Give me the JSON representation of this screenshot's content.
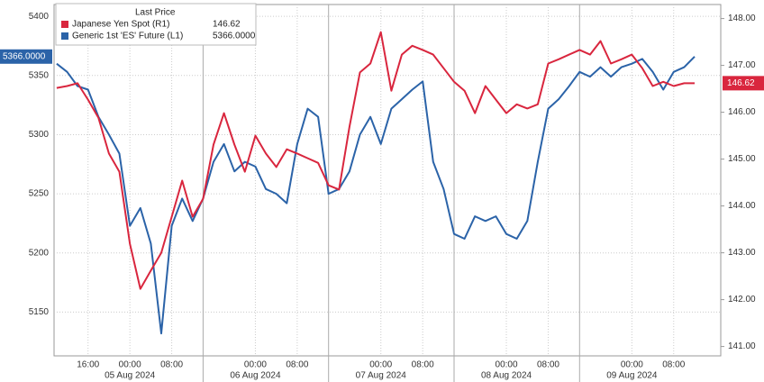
{
  "chart_data": {
    "type": "line",
    "legend_title": "Last Price",
    "x": [
      -14,
      -12,
      -10,
      -8,
      -6,
      -4,
      -2,
      0,
      2,
      4,
      6,
      8,
      10,
      12,
      14,
      16,
      18,
      20,
      22,
      24,
      26,
      28,
      30,
      32,
      34,
      36,
      38,
      40,
      42,
      44,
      46,
      48,
      50,
      52,
      54,
      56,
      58,
      60,
      62,
      64,
      66,
      68,
      70,
      72,
      74,
      76,
      78,
      80,
      82,
      84,
      86,
      88,
      90,
      92,
      94,
      96,
      98,
      100,
      102,
      104,
      106,
      108
    ],
    "xlim": [
      -14.5,
      113
    ],
    "xticks": [
      {
        "value": -8,
        "label": "16:00"
      },
      {
        "value": 0,
        "label": "00:00"
      },
      {
        "value": 8,
        "label": "08:00"
      },
      {
        "value": 24,
        "label": "00:00"
      },
      {
        "value": 32,
        "label": "08:00"
      },
      {
        "value": 48,
        "label": "00:00"
      },
      {
        "value": 56,
        "label": "08:00"
      },
      {
        "value": 72,
        "label": "00:00"
      },
      {
        "value": 80,
        "label": "08:00"
      },
      {
        "value": 96,
        "label": "00:00"
      },
      {
        "value": 104,
        "label": "08:00"
      }
    ],
    "date_labels": [
      {
        "value": 0,
        "label": "05 Aug 2024"
      },
      {
        "value": 24,
        "label": "06 Aug 2024"
      },
      {
        "value": 48,
        "label": "07 Aug 2024"
      },
      {
        "value": 72,
        "label": "08 Aug 2024"
      },
      {
        "value": 96,
        "label": "09 Aug 2024"
      }
    ],
    "separators": [
      14,
      38,
      62,
      86
    ],
    "ylim": [
      5113,
      5410
    ],
    "yticks": [
      5150,
      5200,
      5250,
      5300,
      5350,
      5400
    ],
    "y2lim": [
      140.8,
      148.3
    ],
    "y2ticks": [
      {
        "value": 141,
        "label": "141.00"
      },
      {
        "value": 142,
        "label": "142.00"
      },
      {
        "value": 143,
        "label": "143.00"
      },
      {
        "value": 144,
        "label": "144.00"
      },
      {
        "value": 145,
        "label": "145.00"
      },
      {
        "value": 146,
        "label": "146.00"
      },
      {
        "value": 147,
        "label": "147.00"
      },
      {
        "value": 148,
        "label": "148.00"
      }
    ],
    "grid": true,
    "series": [
      {
        "name": "Japanese Yen Spot  (R1)",
        "color": "#d9263e",
        "axis": "y2",
        "last_label": "146.62",
        "values": [
          146.52,
          146.56,
          146.62,
          146.27,
          145.88,
          145.12,
          144.73,
          143.19,
          142.23,
          142.62,
          143.0,
          143.77,
          144.54,
          143.77,
          144.15,
          145.31,
          145.98,
          145.31,
          144.73,
          145.5,
          145.12,
          144.83,
          145.21,
          145.12,
          145.02,
          144.92,
          144.44,
          144.35,
          145.69,
          146.85,
          147.04,
          147.71,
          146.46,
          147.23,
          147.42,
          147.33,
          147.23,
          146.94,
          146.65,
          146.46,
          145.98,
          146.56,
          146.27,
          145.98,
          146.17,
          146.08,
          146.17,
          147.04,
          147.13,
          147.23,
          147.33,
          147.23,
          147.52,
          147.04,
          147.13,
          147.23,
          146.94,
          146.56,
          146.65,
          146.56,
          146.62,
          146.62
        ]
      },
      {
        "name": "Generic 1st 'ES' Future  (L1)",
        "color": "#2b63a8",
        "axis": "y",
        "last_label": "5366.0000",
        "values": [
          5360,
          5353,
          5341,
          5338,
          5315,
          5300,
          5284,
          5223,
          5238,
          5208,
          5132,
          5223,
          5246,
          5227,
          5246,
          5277,
          5292,
          5269,
          5277,
          5273,
          5254,
          5250,
          5242,
          5292,
          5322,
          5315,
          5250,
          5254,
          5269,
          5300,
          5315,
          5292,
          5322,
          5330,
          5338,
          5345,
          5277,
          5254,
          5216,
          5212,
          5231,
          5227,
          5231,
          5216,
          5212,
          5227,
          5277,
          5322,
          5330,
          5341,
          5353,
          5349,
          5357,
          5349,
          5357,
          5360,
          5364,
          5353,
          5338,
          5353,
          5357,
          5366
        ]
      }
    ]
  }
}
